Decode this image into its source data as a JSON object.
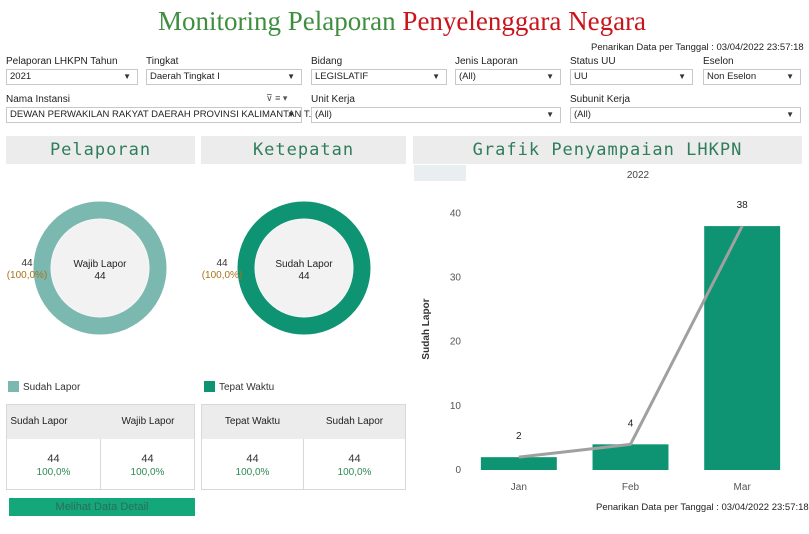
{
  "header": {
    "title_part1": "Monitoring Pelaporan",
    "title_part2": "Penyelenggara Negara",
    "stamp": "Penarikan Data per Tanggal : 03/04/2022 23:57:18"
  },
  "filters": {
    "tahun": {
      "label": "Pelaporan LHKPN Tahun",
      "value": "2021"
    },
    "tingkat": {
      "label": "Tingkat",
      "value": "Daerah Tingkat I"
    },
    "bidang": {
      "label": "Bidang",
      "value": "LEGISLATIF"
    },
    "jenis": {
      "label": "Jenis Laporan",
      "value": "(All)"
    },
    "status": {
      "label": "Status UU",
      "value": "UU"
    },
    "eselon": {
      "label": "Eselon",
      "value": "Non Eselon"
    },
    "instansi": {
      "label": "Nama Instansi",
      "value": "DEWAN PERWAKILAN RAKYAT DAERAH PROVINSI KALIMANTAN T..."
    },
    "unit": {
      "label": "Unit Kerja",
      "value": "(All)"
    },
    "subunit": {
      "label": "Subunit Kerja",
      "value": "(All)"
    }
  },
  "pelaporan": {
    "title": "Pelaporan",
    "center_label": "Wajib Lapor",
    "center_value": "44",
    "side_value": "44",
    "side_pct": "(100,0%)",
    "fraction": 1.0,
    "color": "#7ab8b0",
    "legend": "Sudah Lapor",
    "col1": "Sudah Lapor",
    "col2": "Wajib Lapor",
    "v1": "44",
    "p1": "100,0%",
    "v2": "44",
    "p2": "100,0%"
  },
  "ketepatan": {
    "title": "Ketepatan",
    "center_label": "Sudah Lapor",
    "center_value": "44",
    "side_value": "44",
    "side_pct": "(100,0%)",
    "fraction": 1.0,
    "color": "#0e9473",
    "legend": "Tepat Waktu",
    "col1": "Tepat Waktu",
    "col2": "Sudah Lapor",
    "v1": "44",
    "p1": "100,0%",
    "v2": "44",
    "p2": "100,0%"
  },
  "detail_button": "Melihat Data Detail",
  "grafik": {
    "title": "Grafik Penyampaian LHKPN",
    "stamp": "Penarikan Data per Tanggal : 03/04/2022 23:57:18"
  },
  "chart_data": {
    "type": "bar",
    "title": "2022",
    "categories": [
      "Jan",
      "Feb",
      "Mar"
    ],
    "values": [
      2,
      4,
      38
    ],
    "line": [
      2,
      4,
      38
    ],
    "ylabel": "Sudah Lapor",
    "xlabel": "",
    "ylim": [
      0,
      43
    ],
    "yticks": [
      0,
      10,
      20,
      30,
      40
    ],
    "bar_color": "#0e9473",
    "line_color": "#a0a0a0",
    "grid": false
  }
}
